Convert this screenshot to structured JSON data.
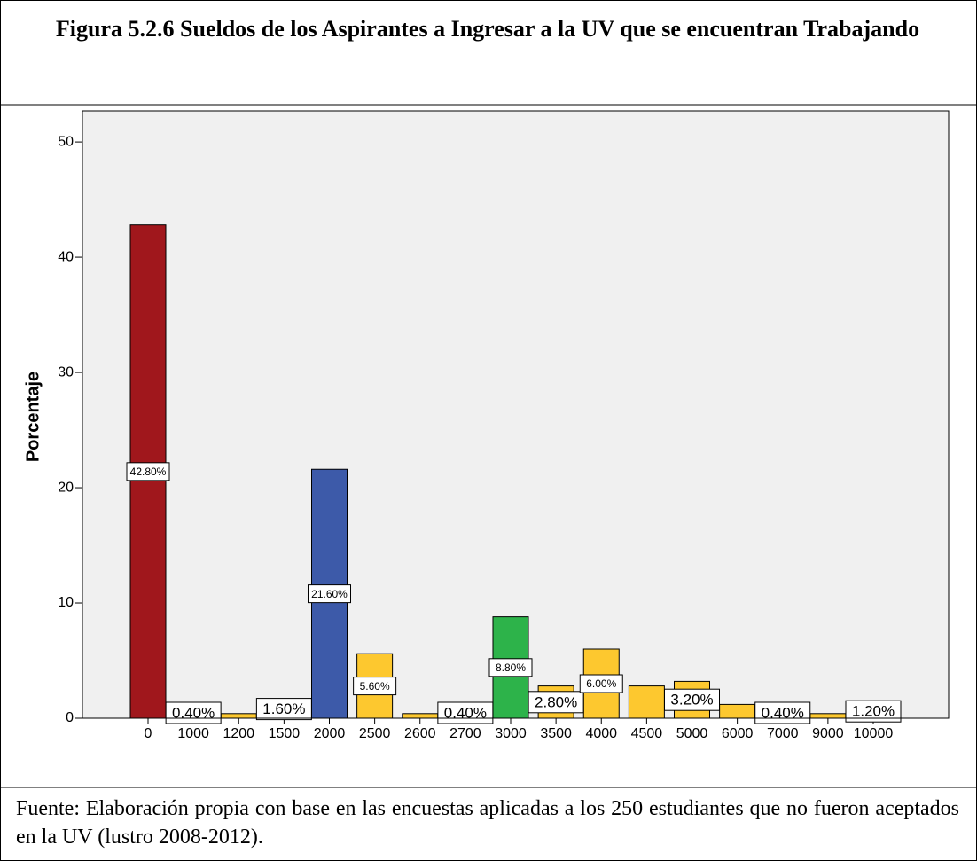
{
  "chart_data": {
    "type": "bar",
    "title": "Figura 5.2.6 Sueldos de los Aspirantes a Ingresar a la UV que se encuentran Trabajando",
    "ylabel": "Porcentaje",
    "categories": [
      "0",
      "1000",
      "1200",
      "1500",
      "2000",
      "2500",
      "2600",
      "2700",
      "3000",
      "3500",
      "4000",
      "4500",
      "5000",
      "6000",
      "7000",
      "9000",
      "10000"
    ],
    "values": [
      42.8,
      0.4,
      0.4,
      1.6,
      21.6,
      5.6,
      0.4,
      0.4,
      8.8,
      2.8,
      6.0,
      2.8,
      3.2,
      1.2,
      0.4,
      0.4,
      1.2
    ],
    "value_labels": [
      "42.80%",
      "0.40%",
      null,
      "1.60%",
      "21.60%",
      "5.60%",
      null,
      "0.40%",
      "8.80%",
      "2.80%",
      "6.00%",
      null,
      "3.20%",
      null,
      "0.40%",
      null,
      "1.20%"
    ],
    "colors": [
      "#a0171c",
      "#fdc82f",
      "#fdc82f",
      "#fdc82f",
      "#3d5aa9",
      "#fdc82f",
      "#fdc82f",
      "#fdc82f",
      "#2db34a",
      "#fdc82f",
      "#fdc82f",
      "#fdc82f",
      "#fdc82f",
      "#fdc82f",
      "#fdc82f",
      "#fdc82f",
      "#fdc82f"
    ],
    "ylim": [
      0,
      52.7
    ],
    "yticks": [
      0,
      10,
      20,
      30,
      40,
      50
    ],
    "grid": false,
    "footer": "Fuente: Elaboración propia con base en las encuestas aplicadas a los 250 estudiantes que no fueron aceptados en la UV (lustro 2008-2012)."
  }
}
